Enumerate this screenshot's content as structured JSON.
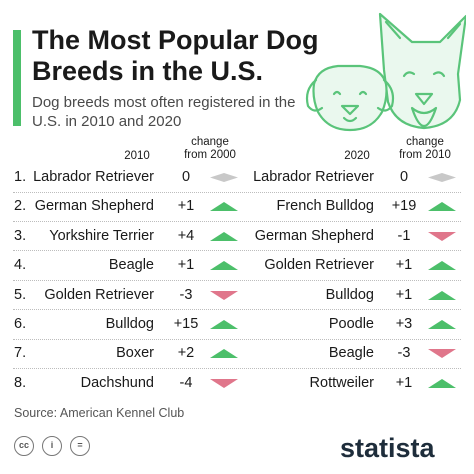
{
  "title": "The Most Popular Dog Breeds in the U.S.",
  "subtitle": "Dog breeds most often registered in the U.S. in 2010 and 2020",
  "colors": {
    "accent": "#4cbf6a",
    "up": "#4cbf6a",
    "down": "#e0768b",
    "same": "#c8c8c8",
    "icon_line": "#5ac47a",
    "brand": "#1e2d3b"
  },
  "headers": {
    "year1": "2010",
    "change1_line1": "change",
    "change1_line2": "from 2000",
    "year2": "2020",
    "change2_line1": "change",
    "change2_line2": "from 2010"
  },
  "chart_data": {
    "type": "table",
    "columns": [
      "Rank",
      "2010",
      "change from 2000",
      "2020",
      "change from 2010"
    ],
    "rows": [
      {
        "rank": "1.",
        "breed_2010": "Labrador Retriever",
        "change_2010": "0",
        "dir_2010": "same",
        "breed_2020": "Labrador Retriever",
        "change_2020": "0",
        "dir_2020": "same"
      },
      {
        "rank": "2.",
        "breed_2010": "German Shepherd",
        "change_2010": "+1",
        "dir_2010": "up",
        "breed_2020": "French Bulldog",
        "change_2020": "+19",
        "dir_2020": "up"
      },
      {
        "rank": "3.",
        "breed_2010": "Yorkshire Terrier",
        "change_2010": "+4",
        "dir_2010": "up",
        "breed_2020": "German Shepherd",
        "change_2020": "-1",
        "dir_2020": "down"
      },
      {
        "rank": "4.",
        "breed_2010": "Beagle",
        "change_2010": "+1",
        "dir_2010": "up",
        "breed_2020": "Golden Retriever",
        "change_2020": "+1",
        "dir_2020": "up"
      },
      {
        "rank": "5.",
        "breed_2010": "Golden Retriever",
        "change_2010": "-3",
        "dir_2010": "down",
        "breed_2020": "Bulldog",
        "change_2020": "+1",
        "dir_2020": "up"
      },
      {
        "rank": "6.",
        "breed_2010": "Bulldog",
        "change_2010": "+15",
        "dir_2010": "up",
        "breed_2020": "Poodle",
        "change_2020": "+3",
        "dir_2020": "up"
      },
      {
        "rank": "7.",
        "breed_2010": "Boxer",
        "change_2010": "+2",
        "dir_2010": "up",
        "breed_2020": "Beagle",
        "change_2020": "-3",
        "dir_2020": "down"
      },
      {
        "rank": "8.",
        "breed_2010": "Dachshund",
        "change_2010": "-4",
        "dir_2010": "down",
        "breed_2020": "Rottweiler",
        "change_2020": "+1",
        "dir_2020": "up"
      }
    ]
  },
  "footer": {
    "source": "Source: American Kennel Club",
    "license_icons": [
      "cc-icon",
      "attribution-icon",
      "no-derivatives-icon"
    ],
    "license_icon_labels": [
      "cc",
      "i",
      "="
    ],
    "brand": "statista"
  }
}
